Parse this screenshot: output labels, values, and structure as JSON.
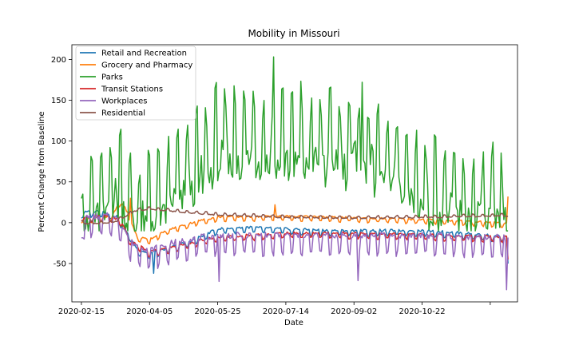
{
  "chart_data": {
    "type": "line",
    "title": "Mobility in Missouri",
    "xlabel": "Date",
    "ylabel": "Percent Change from Baseline",
    "x_start": "2020-02-15",
    "x_end": "2020-12-24",
    "xlim": [
      "2020-02-08",
      "2020-12-31"
    ],
    "x_ticks": [
      "2020-02-15",
      "2020-04-05",
      "2020-05-25",
      "2020-07-14",
      "2020-09-02",
      "2020-10-22",
      "2020-12-11"
    ],
    "x_tick_labels": [
      "2020-02-15",
      "2020-04-05",
      "2020-05-25",
      "2020-07-14",
      "2020-09-02",
      "2020-10-22",
      ""
    ],
    "ylim": [
      -97,
      218
    ],
    "y_ticks": [
      -50,
      0,
      50,
      100,
      150,
      200
    ],
    "grid": false,
    "legend_position": "top-left",
    "series": [
      {
        "name": "Retail and Recreation",
        "color": "#1f77b4",
        "weekly_amplitude": 5,
        "spikes": [
          {
            "day": 53,
            "value": -62
          },
          {
            "day": 313,
            "value": -50
          }
        ],
        "points": [
          [
            "2020-02-15",
            10
          ],
          [
            "2020-03-01",
            12
          ],
          [
            "2020-03-12",
            5
          ],
          [
            "2020-03-20",
            -15
          ],
          [
            "2020-03-27",
            -35
          ],
          [
            "2020-04-05",
            -40
          ],
          [
            "2020-04-20",
            -33
          ],
          [
            "2020-05-05",
            -25
          ],
          [
            "2020-05-25",
            -10
          ],
          [
            "2020-06-15",
            -8
          ],
          [
            "2020-07-14",
            -10
          ],
          [
            "2020-08-15",
            -12
          ],
          [
            "2020-09-02",
            -12
          ],
          [
            "2020-10-22",
            -12
          ],
          [
            "2020-11-20",
            -15
          ],
          [
            "2020-12-24",
            -20
          ]
        ]
      },
      {
        "name": "Grocery and Pharmacy",
        "color": "#ff7f0e",
        "weekly_amplitude": 4,
        "spikes": [
          {
            "day": 36,
            "value": 30
          },
          {
            "day": 142,
            "value": 22
          },
          {
            "day": 313,
            "value": 32
          }
        ],
        "points": [
          [
            "2020-02-15",
            3
          ],
          [
            "2020-03-08",
            5
          ],
          [
            "2020-03-15",
            25
          ],
          [
            "2020-03-20",
            10
          ],
          [
            "2020-03-27",
            -20
          ],
          [
            "2020-04-05",
            -22
          ],
          [
            "2020-04-20",
            -10
          ],
          [
            "2020-05-10",
            0
          ],
          [
            "2020-05-25",
            5
          ],
          [
            "2020-07-14",
            6
          ],
          [
            "2020-09-02",
            4
          ],
          [
            "2020-10-22",
            2
          ],
          [
            "2020-11-25",
            0
          ],
          [
            "2020-12-24",
            -3
          ]
        ]
      },
      {
        "name": "Parks",
        "color": "#2ca02c",
        "weekly_amplitude": 40,
        "spikes": [
          {
            "day": 141,
            "value": 203
          },
          {
            "day": 206,
            "value": 172
          }
        ],
        "points": [
          [
            "2020-02-15",
            15
          ],
          [
            "2020-03-01",
            25
          ],
          [
            "2020-03-12",
            55
          ],
          [
            "2020-03-20",
            20
          ],
          [
            "2020-04-05",
            20
          ],
          [
            "2020-04-20",
            40
          ],
          [
            "2020-05-10",
            70
          ],
          [
            "2020-05-25",
            95
          ],
          [
            "2020-06-15",
            105
          ],
          [
            "2020-07-14",
            95
          ],
          [
            "2020-08-15",
            95
          ],
          [
            "2020-09-02",
            100
          ],
          [
            "2020-10-01",
            70
          ],
          [
            "2020-10-22",
            40
          ],
          [
            "2020-11-15",
            30
          ],
          [
            "2020-12-24",
            15
          ]
        ]
      },
      {
        "name": "Transit Stations",
        "color": "#d62728",
        "weekly_amplitude": 5,
        "spikes": [
          {
            "day": 313,
            "value": -45
          }
        ],
        "points": [
          [
            "2020-02-15",
            5
          ],
          [
            "2020-03-08",
            5
          ],
          [
            "2020-03-15",
            0
          ],
          [
            "2020-03-22",
            -25
          ],
          [
            "2020-04-05",
            -38
          ],
          [
            "2020-04-20",
            -33
          ],
          [
            "2020-05-10",
            -25
          ],
          [
            "2020-05-25",
            -20
          ],
          [
            "2020-07-14",
            -15
          ],
          [
            "2020-09-02",
            -15
          ],
          [
            "2020-10-22",
            -17
          ],
          [
            "2020-12-24",
            -20
          ]
        ]
      },
      {
        "name": "Workplaces",
        "color": "#9467bd",
        "weekly_amplitude": 13,
        "spikes": [
          {
            "day": 2,
            "value": -20
          },
          {
            "day": 101,
            "value": -72
          },
          {
            "day": 203,
            "value": -71
          },
          {
            "day": 312,
            "value": -82
          }
        ],
        "points": [
          [
            "2020-02-15",
            0
          ],
          [
            "2020-03-08",
            2
          ],
          [
            "2020-03-15",
            -5
          ],
          [
            "2020-03-22",
            -30
          ],
          [
            "2020-04-05",
            -40
          ],
          [
            "2020-04-20",
            -32
          ],
          [
            "2020-05-10",
            -25
          ],
          [
            "2020-05-25",
            -22
          ],
          [
            "2020-07-14",
            -22
          ],
          [
            "2020-09-02",
            -22
          ],
          [
            "2020-10-22",
            -22
          ],
          [
            "2020-12-24",
            -25
          ]
        ]
      },
      {
        "name": "Residential",
        "color": "#8c564b",
        "weekly_amplitude": 2,
        "spikes": [],
        "points": [
          [
            "2020-02-15",
            0
          ],
          [
            "2020-03-08",
            0
          ],
          [
            "2020-03-15",
            5
          ],
          [
            "2020-03-25",
            15
          ],
          [
            "2020-04-05",
            17
          ],
          [
            "2020-04-20",
            15
          ],
          [
            "2020-05-10",
            12
          ],
          [
            "2020-05-25",
            10
          ],
          [
            "2020-07-14",
            7
          ],
          [
            "2020-09-02",
            6
          ],
          [
            "2020-10-22",
            7
          ],
          [
            "2020-12-24",
            9
          ]
        ]
      }
    ]
  }
}
